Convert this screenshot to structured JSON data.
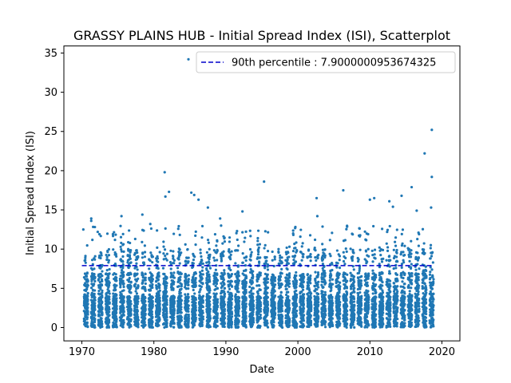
{
  "chart_data": {
    "type": "scatter",
    "title": "GRASSY PLAINS HUB - Initial Spread Index (ISI), Scatterplot",
    "xlabel": "Date",
    "ylabel": "Initial Spread Index (ISI)",
    "xlim": [
      1967.5,
      2022.5
    ],
    "ylim": [
      -1.7,
      35.9
    ],
    "x_ticks": [
      1970,
      1980,
      1990,
      2000,
      2010,
      2020
    ],
    "y_ticks": [
      0,
      5,
      10,
      15,
      20,
      25,
      30,
      35
    ],
    "grid": false,
    "legend": {
      "placement": "top-right",
      "entries": [
        "90th percentile : 7.9000000953674325"
      ]
    },
    "reference_line": {
      "name": "90th percentile : 7.9000000953674325",
      "value": 7.9000000953674325,
      "x_range": [
        1970,
        2018.8
      ],
      "style": "dashed",
      "color": "#0000cc"
    },
    "series": [
      {
        "color": "#1f77b4",
        "seasons": {
          "start_year": 1970,
          "end_year": 2018,
          "season_start": 0.3,
          "season_end": 0.85
        },
        "outliers": [
          {
            "x": 1970.2,
            "y": 12.5
          },
          {
            "x": 1971.3,
            "y": 13.9
          },
          {
            "x": 1971.3,
            "y": 13.6
          },
          {
            "x": 1972.2,
            "y": 12.2
          },
          {
            "x": 1975.5,
            "y": 14.2
          },
          {
            "x": 1978.4,
            "y": 14.4
          },
          {
            "x": 1979.5,
            "y": 13.2
          },
          {
            "x": 1981.5,
            "y": 19.8
          },
          {
            "x": 1981.6,
            "y": 16.7
          },
          {
            "x": 1982.1,
            "y": 17.3
          },
          {
            "x": 1984.8,
            "y": 34.2
          },
          {
            "x": 1985.2,
            "y": 17.2
          },
          {
            "x": 1985.6,
            "y": 16.9
          },
          {
            "x": 1986.2,
            "y": 16.3
          },
          {
            "x": 1987.5,
            "y": 15.3
          },
          {
            "x": 1989.2,
            "y": 13.9
          },
          {
            "x": 1992.3,
            "y": 14.8
          },
          {
            "x": 1995.3,
            "y": 18.6
          },
          {
            "x": 2002.6,
            "y": 16.5
          },
          {
            "x": 2002.7,
            "y": 14.2
          },
          {
            "x": 2006.3,
            "y": 17.5
          },
          {
            "x": 2010.0,
            "y": 16.3
          },
          {
            "x": 2010.6,
            "y": 16.5
          },
          {
            "x": 2012.7,
            "y": 16.1
          },
          {
            "x": 2014.4,
            "y": 16.8
          },
          {
            "x": 2015.8,
            "y": 17.9
          },
          {
            "x": 2016.5,
            "y": 14.9
          },
          {
            "x": 2017.6,
            "y": 22.2
          },
          {
            "x": 2018.6,
            "y": 25.2
          },
          {
            "x": 2018.6,
            "y": 19.2
          },
          {
            "x": 2018.5,
            "y": 15.3
          },
          {
            "x": 2013.2,
            "y": 15.4
          }
        ]
      }
    ]
  }
}
